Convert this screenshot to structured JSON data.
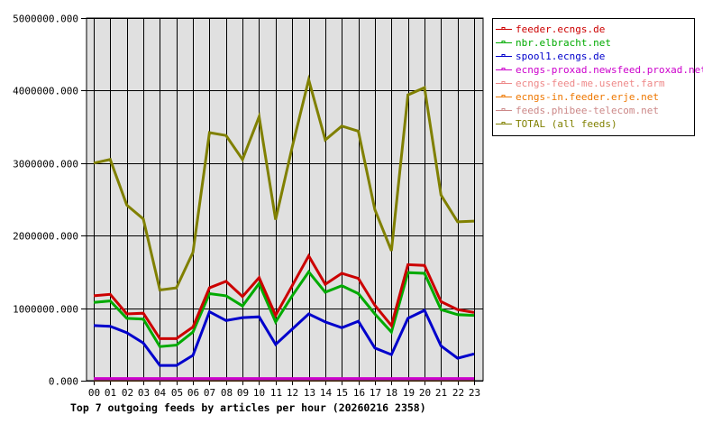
{
  "chart_data": {
    "type": "line",
    "title": "Top 7 outgoing feeds by articles per hour (20260216 2358)",
    "xlabel": "",
    "ylabel": "",
    "ylim": [
      0,
      5000000
    ],
    "yticks": [
      "0.000",
      "1000000.000",
      "2000000.000",
      "3000000.000",
      "4000000.000",
      "5000000.000"
    ],
    "ytick_values": [
      0,
      1000000,
      2000000,
      3000000,
      4000000,
      5000000
    ],
    "grid": true,
    "legend_position": "right",
    "categories": [
      "00",
      "01",
      "02",
      "03",
      "04",
      "05",
      "06",
      "07",
      "08",
      "09",
      "10",
      "11",
      "12",
      "13",
      "14",
      "15",
      "16",
      "17",
      "18",
      "19",
      "20",
      "21",
      "22",
      "23"
    ],
    "series": [
      {
        "name": "feeder.ecngs.de",
        "color": "#cc0000",
        "values": [
          1170000,
          1190000,
          920000,
          930000,
          580000,
          580000,
          740000,
          1280000,
          1370000,
          1160000,
          1420000,
          900000,
          1310000,
          1720000,
          1330000,
          1480000,
          1410000,
          1040000,
          760000,
          1600000,
          1590000,
          1090000,
          980000,
          940000
        ]
      },
      {
        "name": "nbr.elbracht.net",
        "color": "#00aa00",
        "values": [
          1080000,
          1100000,
          860000,
          850000,
          470000,
          490000,
          670000,
          1200000,
          1170000,
          1030000,
          1340000,
          810000,
          1170000,
          1500000,
          1220000,
          1310000,
          1200000,
          920000,
          670000,
          1490000,
          1480000,
          980000,
          910000,
          900000
        ]
      },
      {
        "name": "spool1.ecngs.de",
        "color": "#0000cc",
        "values": [
          760000,
          750000,
          660000,
          520000,
          210000,
          210000,
          350000,
          950000,
          830000,
          870000,
          880000,
          500000,
          710000,
          920000,
          810000,
          730000,
          820000,
          450000,
          360000,
          860000,
          970000,
          480000,
          310000,
          370000
        ]
      },
      {
        "name": "ecngs-proxad.newsfeed.proxad.net",
        "color": "#cc00cc",
        "values": [
          30000,
          30000,
          30000,
          30000,
          30000,
          30000,
          30000,
          30000,
          30000,
          30000,
          30000,
          30000,
          30000,
          30000,
          30000,
          30000,
          30000,
          30000,
          30000,
          30000,
          30000,
          30000,
          30000,
          30000
        ]
      },
      {
        "name": "ecngs-feed-me.usenet.farm",
        "color": "#ee8888",
        "values": [
          15000,
          15000,
          15000,
          15000,
          15000,
          15000,
          15000,
          15000,
          15000,
          15000,
          15000,
          15000,
          15000,
          15000,
          15000,
          15000,
          15000,
          15000,
          15000,
          15000,
          15000,
          15000,
          15000,
          15000
        ]
      },
      {
        "name": "ecngs-in.feeder.erje.net",
        "color": "#ee7700",
        "values": [
          10000,
          10000,
          10000,
          10000,
          10000,
          10000,
          10000,
          10000,
          10000,
          10000,
          10000,
          10000,
          10000,
          10000,
          10000,
          10000,
          10000,
          10000,
          10000,
          10000,
          10000,
          10000,
          10000,
          10000
        ]
      },
      {
        "name": "feeds.phibee-telecom.net",
        "color": "#cc8888",
        "values": [
          12000,
          12000,
          12000,
          12000,
          12000,
          12000,
          12000,
          12000,
          12000,
          12000,
          12000,
          12000,
          12000,
          12000,
          12000,
          12000,
          12000,
          12000,
          12000,
          12000,
          12000,
          12000,
          12000,
          12000
        ]
      },
      {
        "name": "TOTAL (all feeds)",
        "color": "#808000",
        "values": [
          3000000,
          3050000,
          2420000,
          2230000,
          1250000,
          1280000,
          1770000,
          3420000,
          3380000,
          3050000,
          3640000,
          2220000,
          3220000,
          4150000,
          3320000,
          3510000,
          3440000,
          2360000,
          1790000,
          3940000,
          4040000,
          2560000,
          2190000,
          2200000
        ]
      }
    ]
  }
}
